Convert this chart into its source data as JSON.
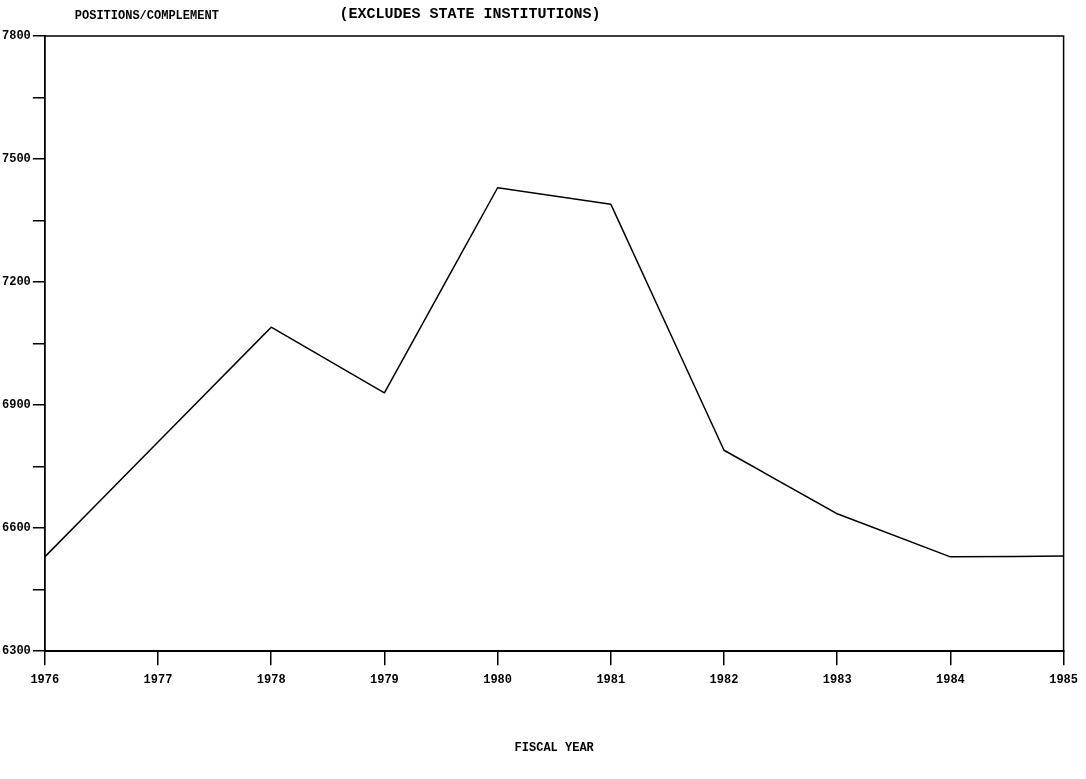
{
  "chart_data": {
    "type": "line",
    "title": "(EXCLUDES STATE INSTITUTIONS)",
    "ylabel": "POSITIONS/COMPLEMENT",
    "xlabel": "FISCAL YEAR",
    "x": [
      1976,
      1977,
      1978,
      1979,
      1980,
      1981,
      1982,
      1983,
      1984,
      1985
    ],
    "series": [
      {
        "color": "#000000",
        "values": [
          6530,
          6810,
          7090,
          6930,
          7430,
          7390,
          6790,
          6635,
          6530,
          6532
        ]
      }
    ],
    "xlim": [
      1976,
      1985
    ],
    "xticks": [
      1976,
      1977,
      1978,
      1979,
      1980,
      1981,
      1982,
      1983,
      1984,
      1985
    ],
    "ylim": [
      6300,
      7800
    ],
    "yticks": [
      6300,
      {
        "value": 6450,
        "label": null
      },
      6600,
      {
        "value": 6750,
        "label": null
      },
      6900,
      {
        "value": 7050,
        "label": null
      },
      7200,
      {
        "value": 7350,
        "label": null
      },
      7500,
      {
        "value": 7650,
        "label": null
      },
      7800
    ],
    "grid": false,
    "legend": false,
    "marker": "none",
    "line_style": "solid"
  }
}
